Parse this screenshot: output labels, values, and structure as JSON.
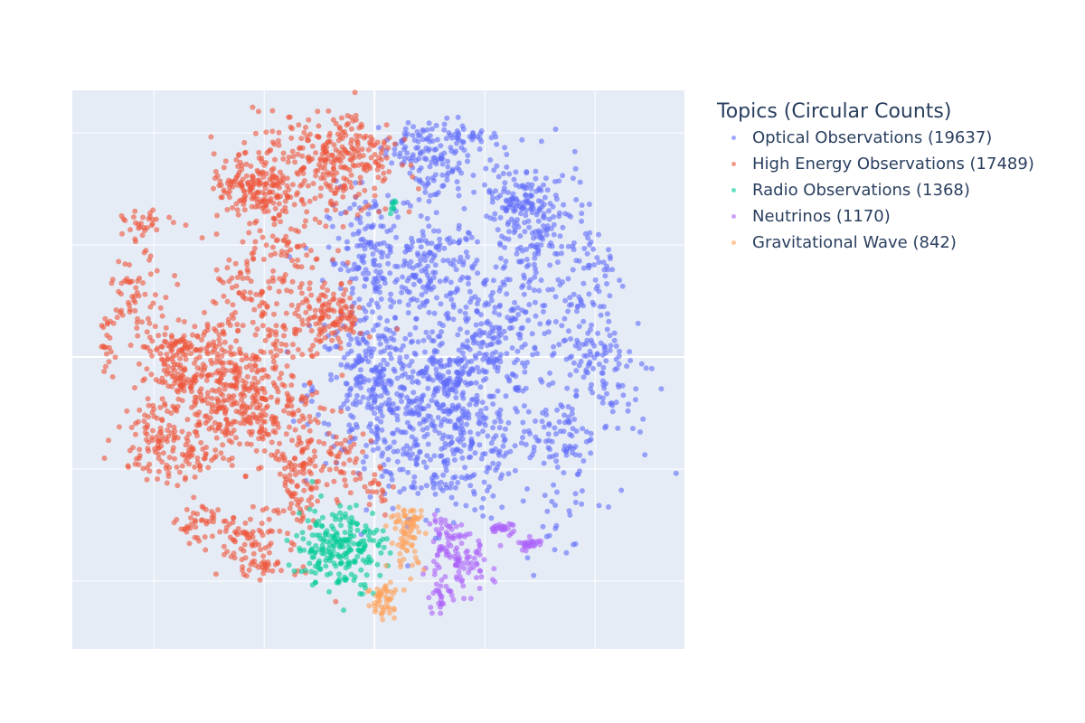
{
  "chart_data": {
    "type": "scatter",
    "title": "",
    "xlabel": "",
    "ylabel": "",
    "xlim": [
      -54.8,
      56.2
    ],
    "ylim": [
      -52.1,
      47.6
    ],
    "xgrid": [
      -40,
      -20,
      0,
      20,
      40
    ],
    "ygrid": [
      -40,
      -20,
      0,
      20,
      40
    ],
    "grid": true,
    "tick_labels_shown": false,
    "plot_background": "#e5ecf6",
    "marker_opacity": 0.6,
    "legend": {
      "title": "Topics (Circular Counts)",
      "placement": "right"
    },
    "cluster_fields": [
      "x_center",
      "y_center",
      "x_spread",
      "y_spread",
      "sample_points"
    ],
    "series": [
      {
        "name": "Optical Observations (19637)",
        "count": 19637,
        "color": "#636efa",
        "clusters": [
          [
            14.1,
            -15.3,
            9.8,
            8.1,
            350
          ],
          [
            1.0,
            -5.6,
            7.4,
            8.1,
            300
          ],
          [
            20.7,
            4.0,
            5.7,
            6.5,
            180
          ],
          [
            14.1,
            -4.0,
            4.1,
            4.0,
            100
          ],
          [
            -0.7,
            16.9,
            4.9,
            8.1,
            180
          ],
          [
            10.8,
            15.3,
            4.9,
            6.5,
            150
          ],
          [
            28.9,
            21.8,
            5.7,
            8.1,
            180
          ],
          [
            10.8,
            34.7,
            4.1,
            4.8,
            100
          ],
          [
            5.9,
            37.9,
            2.5,
            2.4,
            40
          ],
          [
            37.0,
            2.4,
            4.1,
            6.5,
            80
          ],
          [
            33.8,
            -13.7,
            3.3,
            4.8,
            60
          ],
          [
            43.6,
            -4.0,
            4.9,
            9.7,
            70
          ],
          [
            40.3,
            15.3,
            3.3,
            4.8,
            40
          ],
          [
            17.4,
            39.5,
            3.3,
            1.6,
            25
          ],
          [
            25.6,
            28.2,
            4.1,
            4.0,
            80
          ],
          [
            33.8,
            -26.6,
            4.1,
            6.5,
            25
          ]
        ]
      },
      {
        "name": "High Energy Observations (17489)",
        "count": 17489,
        "color": "#EF553B",
        "clusters": [
          [
            -28.5,
            -4.0,
            4.9,
            6.5,
            220
          ],
          [
            -36.7,
            -0.8,
            3.3,
            4.8,
            120
          ],
          [
            -18.7,
            12.1,
            6.6,
            16.1,
            300
          ],
          [
            -8.9,
            33.1,
            8.2,
            6.5,
            220
          ],
          [
            -22.0,
            29.8,
            4.9,
            3.2,
            120
          ],
          [
            -40.0,
            -13.7,
            4.1,
            4.8,
            100
          ],
          [
            -31.8,
            -16.9,
            3.3,
            3.2,
            60
          ],
          [
            -13.8,
            -20.2,
            3.3,
            9.7,
            150
          ],
          [
            -7.2,
            7.3,
            3.3,
            3.2,
            100
          ],
          [
            -22.0,
            -10.5,
            4.1,
            4.8,
            100
          ],
          [
            -23.6,
            -33.1,
            3.3,
            4.0,
            70
          ],
          [
            -31.8,
            -29.8,
            2.5,
            2.4,
            40
          ],
          [
            -41.6,
            23.4,
            2.5,
            1.6,
            30
          ],
          [
            -43.3,
            10.5,
            3.3,
            4.8,
            60
          ],
          [
            -3.9,
            37.9,
            4.9,
            3.2,
            80
          ],
          [
            -5.6,
            -18.5,
            2.5,
            3.2,
            40
          ],
          [
            -48.2,
            2.4,
            1.3,
            3.2,
            20
          ],
          [
            1.0,
            -23.4,
            1.6,
            2.4,
            20
          ],
          [
            -20.3,
            -37.1,
            2.0,
            0.8,
            20
          ]
        ]
      },
      {
        "name": "Radio Observations (1368)",
        "count": 1368,
        "color": "#00cc96",
        "clusters": [
          [
            -6.4,
            -33.9,
            4.9,
            4.8,
            220
          ],
          [
            3.4,
            26.9,
            0.8,
            0.8,
            8
          ]
        ]
      },
      {
        "name": "Neutrinos (1170)",
        "count": 1170,
        "color": "#ab63fa",
        "clusters": [
          [
            14.9,
            -37.1,
            4.1,
            3.2,
            90
          ],
          [
            12.5,
            -31.5,
            2.0,
            1.6,
            30
          ],
          [
            23.1,
            -30.6,
            1.6,
            0.6,
            25
          ],
          [
            28.0,
            -33.4,
            1.6,
            0.8,
            25
          ],
          [
            12.1,
            -43.2,
            1.3,
            1.3,
            20
          ]
        ]
      },
      {
        "name": "Gravitational Wave (842)",
        "count": 842,
        "color": "#FFA15A",
        "clusters": [
          [
            5.9,
            -32.3,
            2.0,
            3.5,
            60
          ],
          [
            1.8,
            -43.5,
            2.0,
            2.4,
            50
          ],
          [
            6.7,
            -28.5,
            1.3,
            1.0,
            20
          ]
        ]
      }
    ]
  }
}
